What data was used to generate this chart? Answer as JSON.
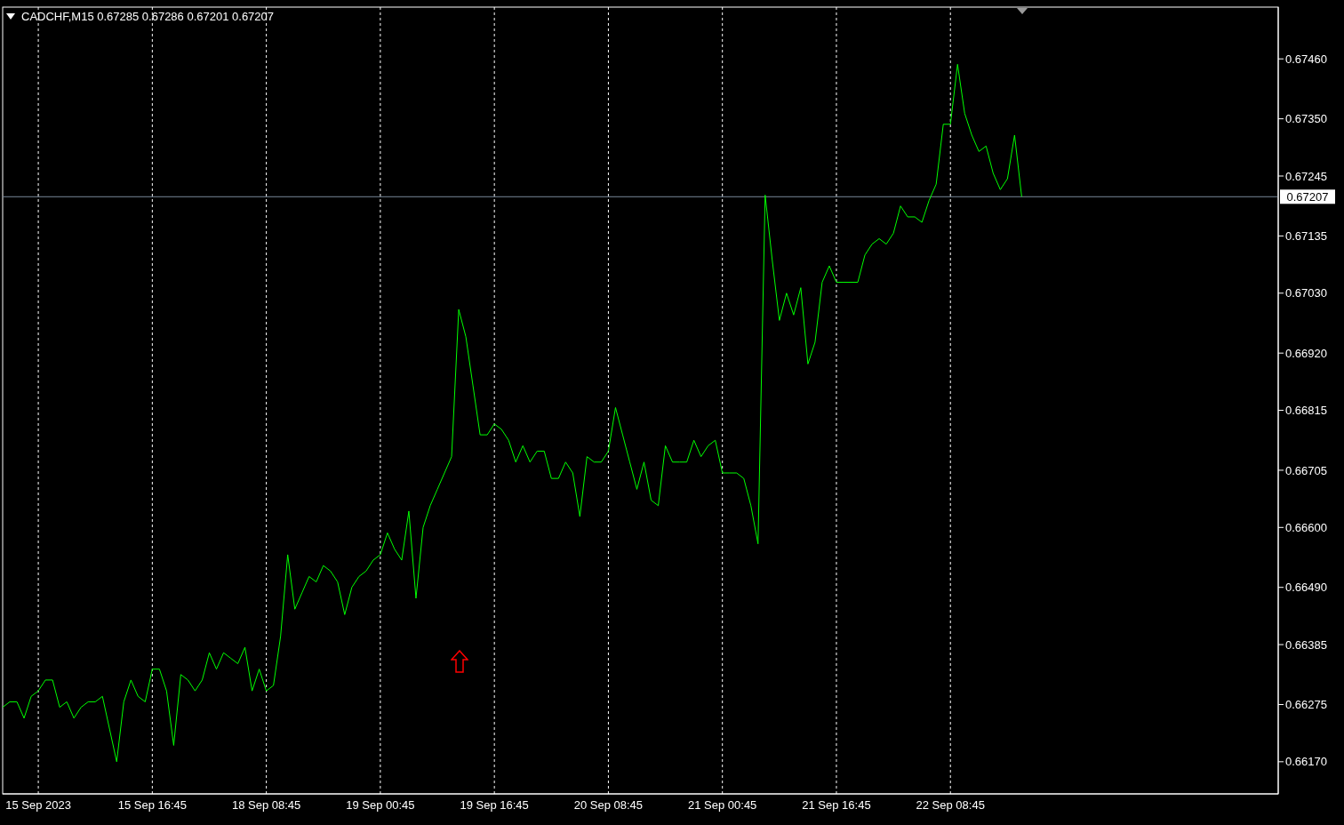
{
  "chart_data": {
    "type": "line",
    "title": "CADCHF,M15  0.67285 0.67286 0.67201 0.67207",
    "categories": [
      null,
      null,
      null,
      null,
      null,
      "15 Sep 2023",
      null,
      null,
      null,
      null,
      null,
      null,
      null,
      null,
      null,
      null,
      null,
      null,
      null,
      null,
      null,
      "15 Sep 16:45",
      null,
      null,
      null,
      null,
      null,
      null,
      null,
      null,
      null,
      null,
      null,
      null,
      null,
      null,
      null,
      "18 Sep 08:45",
      null,
      null,
      null,
      null,
      null,
      null,
      null,
      null,
      null,
      null,
      null,
      null,
      null,
      null,
      null,
      "19 Sep 00:45",
      null,
      null,
      null,
      null,
      null,
      null,
      null,
      null,
      null,
      null,
      null,
      null,
      null,
      null,
      null,
      "19 Sep 16:45",
      null,
      null,
      null,
      null,
      null,
      null,
      null,
      null,
      null,
      null,
      null,
      null,
      null,
      null,
      null,
      "20 Sep 08:45",
      null,
      null,
      null,
      null,
      null,
      null,
      null,
      null,
      null,
      null,
      null,
      null,
      null,
      null,
      null,
      "21 Sep 00:45",
      null,
      null,
      null,
      null,
      null,
      null,
      null,
      null,
      null,
      null,
      null,
      null,
      null,
      null,
      null,
      "21 Sep 16:45",
      null,
      null,
      null,
      null,
      null,
      null,
      null,
      null,
      null,
      null,
      null,
      null,
      null,
      null,
      null,
      "22 Sep 08:45",
      null,
      null,
      null,
      null,
      null,
      null,
      null,
      null,
      null,
      null,
      null,
      null,
      null,
      null,
      null,
      null,
      null,
      null,
      null,
      null,
      null,
      null,
      null,
      null,
      null,
      null,
      null,
      null,
      null,
      null,
      null,
      null,
      null,
      null,
      null,
      null,
      null,
      null,
      null,
      null,
      null,
      null,
      null,
      null,
      null,
      null
    ],
    "series": [
      {
        "color": "#00ff00",
        "values": [
          0.6627,
          0.6628,
          0.6628,
          0.6625,
          0.6629,
          0.663,
          0.6632,
          0.6632,
          0.6627,
          0.6628,
          0.6625,
          0.6627,
          0.6628,
          0.6628,
          0.6629,
          0.6623,
          0.6617,
          0.6628,
          0.6632,
          0.6629,
          0.6628,
          0.6634,
          0.6634,
          0.663,
          0.662,
          0.6633,
          0.6632,
          0.663,
          0.6632,
          0.6637,
          0.6634,
          0.6637,
          0.6636,
          0.6635,
          0.6638,
          0.663,
          0.6634,
          0.663,
          0.6631,
          0.664,
          0.6655,
          0.6645,
          0.6648,
          0.6651,
          0.665,
          0.6653,
          0.6652,
          0.665,
          0.6644,
          0.6649,
          0.6651,
          0.6652,
          0.6654,
          0.6655,
          0.6659,
          0.6656,
          0.6654,
          0.6663,
          0.6647,
          0.666,
          0.6664,
          0.6667,
          0.667,
          0.6673,
          0.67,
          0.6695,
          0.6686,
          0.6677,
          0.6677,
          0.6679,
          0.6678,
          0.6676,
          0.6672,
          0.6675,
          0.6672,
          0.6674,
          0.6674,
          0.6669,
          0.6669,
          0.6672,
          0.667,
          0.6662,
          0.6673,
          0.6672,
          0.6672,
          0.6674,
          0.6682,
          0.6677,
          0.6672,
          0.6667,
          0.6672,
          0.6665,
          0.6664,
          0.6675,
          0.6672,
          0.6672,
          0.6672,
          0.6676,
          0.6673,
          0.6675,
          0.6676,
          0.667,
          0.667,
          0.667,
          0.6669,
          0.6664,
          0.6657,
          0.6721,
          0.6709,
          0.6698,
          0.6703,
          0.6699,
          0.6704,
          0.669,
          0.6694,
          0.6705,
          0.6708,
          0.6705,
          0.6705,
          0.6705,
          0.6705,
          0.671,
          0.6712,
          0.6713,
          0.6712,
          0.6714,
          0.6719,
          0.6717,
          0.6717,
          0.6716,
          0.672,
          0.6723,
          0.6734,
          0.6734,
          0.6745,
          0.6736,
          0.6732,
          0.6729,
          0.673,
          0.6725,
          0.6722,
          0.6724,
          0.6732,
          0.67207,
          null,
          null,
          null,
          null,
          null,
          null,
          null,
          null,
          null,
          null,
          null,
          null,
          null,
          null,
          null,
          null,
          null,
          null,
          null,
          null,
          null,
          null,
          null,
          null,
          null,
          null,
          null,
          null,
          null,
          null,
          null,
          null,
          null,
          null,
          null,
          null
        ]
      }
    ],
    "ylim": [
      0.66111,
      0.67555
    ],
    "yticks": [
      {
        "value": 0.6617,
        "label": "0.66170"
      },
      {
        "value": 0.66275,
        "label": "0.66275"
      },
      {
        "value": 0.66385,
        "label": "0.66385"
      },
      {
        "value": 0.6649,
        "label": "0.66490"
      },
      {
        "value": 0.666,
        "label": "0.66600"
      },
      {
        "value": 0.66705,
        "label": "0.66705"
      },
      {
        "value": 0.66815,
        "label": "0.66815"
      },
      {
        "value": 0.6692,
        "label": "0.66920"
      },
      {
        "value": 0.6703,
        "label": "0.67030"
      },
      {
        "value": 0.67135,
        "label": "0.67135"
      },
      {
        "value": 0.67245,
        "label": "0.67245"
      },
      {
        "value": 0.6735,
        "label": "0.67350"
      },
      {
        "value": 0.6746,
        "label": "0.67460"
      }
    ],
    "ref_lines": [
      {
        "axis": "y",
        "value": 0.67207,
        "label": "0.67207",
        "color": "#778899"
      }
    ],
    "grid": "x",
    "legend": false,
    "marker": "none",
    "line_style": "solid"
  }
}
